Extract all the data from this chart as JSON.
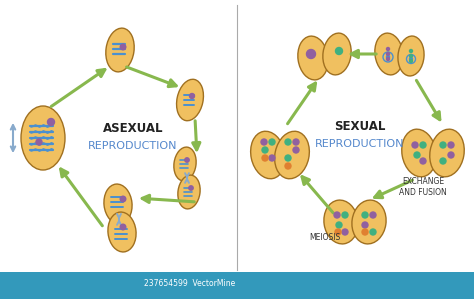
{
  "bg_color": "#ffffff",
  "divider_color": "#aaaaaa",
  "cell_fill": "#f0c060",
  "cell_edge": "#a07020",
  "arrow_color": "#88b84e",
  "blue_chrom": "#4a90d0",
  "purple_dot": "#9060a0",
  "teal_dot": "#40b080",
  "orange_dot": "#e08030",
  "asexual_title": "ASEXUAL",
  "asexual_sub": "REPRODUCTION",
  "sexual_title": "SEXUAL",
  "sexual_sub": "REPRODUCTION",
  "label_meiosis": "MEIOSIS",
  "label_exchange": "EXCHANGE\nAND FUSION",
  "title_color": "#222222",
  "sub_color": "#5588cc",
  "label_color": "#333333",
  "blue_arrow": "#88aacc",
  "watermark": "237654599  VectorMine",
  "wm_bg": "#3399bb"
}
